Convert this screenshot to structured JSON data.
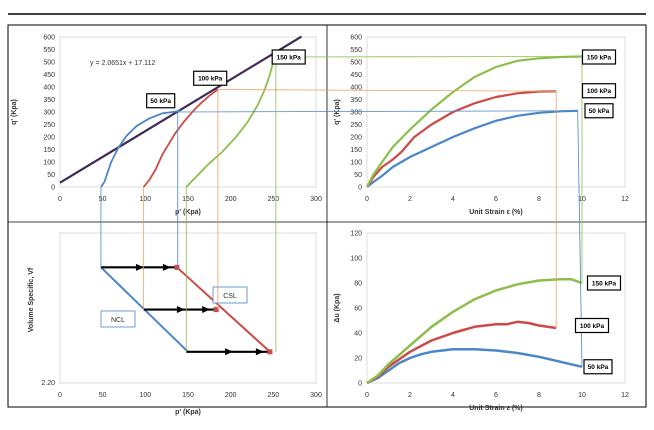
{
  "colors": {
    "s50": "#4a86c8",
    "s100": "#cc4a46",
    "s150": "#8cbf4a",
    "fit_line": "#3e2a5a",
    "proj_50": "#4a86c8",
    "proj_100": "#f0a060",
    "proj_150": "#8cbf4a",
    "border": "#000000",
    "grid_box": "#c8c8c8"
  },
  "pressure_labels": [
    "50 kPa",
    "100 kPa",
    "150 kPa"
  ],
  "chart_data": [
    {
      "type": "line",
      "id": "stress_path",
      "xlabel": "p' (Kpa)",
      "ylabel": "q' (Kpa)",
      "xlim": [
        0,
        300
      ],
      "ylim": [
        0,
        600
      ],
      "x_ticks": [
        0,
        50,
        100,
        150,
        200,
        250,
        300
      ],
      "y_ticks": [
        0,
        50,
        100,
        150,
        200,
        250,
        300,
        350,
        400,
        450,
        500,
        550,
        600
      ],
      "grid": false,
      "annotation": "y = 2.0651x + 17.112",
      "fit_line": {
        "slope": 2.0651,
        "intercept": 17.112,
        "x_range": [
          0,
          283
        ]
      },
      "series": [
        {
          "name": "50 kPa",
          "x": [
            48,
            52,
            55,
            60,
            68,
            78,
            90,
            105,
            120,
            132,
            137,
            140,
            138
          ],
          "y": [
            0,
            20,
            50,
            100,
            155,
            205,
            245,
            275,
            295,
            300,
            303,
            305,
            300
          ]
        },
        {
          "name": "100 kPa",
          "x": [
            98,
            105,
            112,
            120,
            128,
            135,
            145,
            155,
            165,
            175,
            183,
            185
          ],
          "y": [
            0,
            30,
            70,
            130,
            175,
            215,
            260,
            300,
            335,
            365,
            385,
            390
          ]
        },
        {
          "name": "150 kPa",
          "x": [
            148,
            155,
            165,
            175,
            190,
            205,
            220,
            232,
            240,
            246,
            250,
            253
          ],
          "y": [
            0,
            25,
            60,
            95,
            140,
            195,
            260,
            330,
            390,
            450,
            500,
            520
          ]
        }
      ]
    },
    {
      "type": "line",
      "id": "deviator_strain",
      "xlabel": "Unit Strain ε (%)",
      "ylabel": "q' (Kpa)",
      "xlim": [
        0,
        12
      ],
      "ylim": [
        0,
        600
      ],
      "x_ticks": [
        0,
        2,
        4,
        6,
        8,
        10,
        12
      ],
      "y_ticks": [
        0,
        50,
        100,
        150,
        200,
        250,
        300,
        350,
        400,
        450,
        500,
        550,
        600
      ],
      "grid": false,
      "series": [
        {
          "name": "50 kPa",
          "x": [
            0,
            0.3,
            0.7,
            1.2,
            2,
            3,
            4,
            5,
            6,
            7,
            8,
            9,
            9.8
          ],
          "y": [
            0,
            20,
            45,
            80,
            120,
            160,
            200,
            235,
            265,
            285,
            297,
            303,
            305
          ]
        },
        {
          "name": "100 kPa",
          "x": [
            0,
            0.3,
            0.7,
            1.2,
            1.6,
            2.2,
            3,
            4,
            5,
            6,
            7,
            8,
            8.8
          ],
          "y": [
            0,
            40,
            80,
            110,
            140,
            200,
            250,
            300,
            335,
            360,
            375,
            382,
            383
          ]
        },
        {
          "name": "150 kPa",
          "x": [
            0,
            0.3,
            0.7,
            1.2,
            2,
            3,
            4,
            5,
            6,
            7,
            8,
            9,
            10
          ],
          "y": [
            0,
            50,
            100,
            160,
            230,
            310,
            380,
            440,
            480,
            505,
            515,
            520,
            522
          ]
        }
      ]
    },
    {
      "type": "line",
      "id": "volume_path",
      "xlabel": "p' (Kpa)",
      "ylabel": "Volume Specific, Vf",
      "xlim": [
        0,
        300
      ],
      "x_ticks": [
        0,
        50,
        100,
        150,
        200,
        250,
        300
      ],
      "y_tick_label": "2.20",
      "grid": false,
      "labels": [
        "NCL",
        "CSL"
      ],
      "ncl_x": [
        48,
        150
      ],
      "csl_x": [
        137,
        246
      ],
      "levels": {
        "v50": 0.74,
        "v100": 0.42,
        "v150": 0.1,
        "bottom": 0
      },
      "arrows": [
        {
          "from": 48,
          "to": 137,
          "level": 0.74
        },
        {
          "from": 98,
          "to": 183,
          "level": 0.42
        },
        {
          "from": 148,
          "to": 246,
          "level": 0.1
        }
      ]
    },
    {
      "type": "line",
      "id": "pore_pressure",
      "xlabel": "Unit Strain ε (%)",
      "ylabel": "Δu (Kpa)",
      "xlim": [
        0,
        12
      ],
      "ylim": [
        0,
        120
      ],
      "x_ticks": [
        0,
        2,
        4,
        6,
        8,
        10,
        12
      ],
      "y_ticks": [
        0,
        20,
        40,
        60,
        80,
        100,
        120
      ],
      "grid": false,
      "series": [
        {
          "name": "50 kPa",
          "x": [
            0,
            0.5,
            1,
            1.5,
            2,
            2.5,
            3,
            3.5,
            4,
            5,
            6,
            7,
            8,
            9,
            10
          ],
          "y": [
            0,
            4,
            10,
            16,
            20,
            23,
            25,
            26,
            27,
            27,
            26,
            24,
            21,
            17,
            13
          ]
        },
        {
          "name": "100 kPa",
          "x": [
            0,
            0.5,
            1,
            2,
            3,
            4,
            5,
            6,
            6.5,
            7,
            7.5,
            8,
            8.8
          ],
          "y": [
            0,
            5,
            13,
            25,
            34,
            40,
            45,
            47,
            47,
            49,
            48,
            46,
            44
          ]
        },
        {
          "name": "150 kPa",
          "x": [
            0,
            0.5,
            1,
            2,
            3,
            4,
            5,
            6,
            7,
            8,
            9,
            9.5,
            10
          ],
          "y": [
            0,
            6,
            15,
            30,
            45,
            57,
            67,
            74,
            79,
            82,
            83,
            83,
            80
          ]
        }
      ]
    }
  ]
}
